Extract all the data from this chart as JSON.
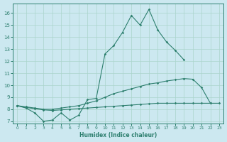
{
  "xlabel": "Humidex (Indice chaleur)",
  "bg_color": "#cce8f0",
  "grid_color": "#aad4cc",
  "line_color": "#2d7f6e",
  "xlim": [
    -0.5,
    23.5
  ],
  "ylim": [
    6.8,
    16.8
  ],
  "yticks": [
    7,
    8,
    9,
    10,
    11,
    12,
    13,
    14,
    15,
    16
  ],
  "xticks": [
    0,
    1,
    2,
    3,
    4,
    5,
    6,
    7,
    8,
    9,
    10,
    11,
    12,
    13,
    14,
    15,
    16,
    17,
    18,
    19,
    20,
    21,
    22,
    23
  ],
  "line1_x": [
    0,
    1,
    2,
    3,
    4,
    5,
    6,
    7,
    8,
    9,
    10,
    11,
    12,
    13,
    14,
    15,
    16,
    17,
    18,
    19
  ],
  "line1_y": [
    8.3,
    8.1,
    7.7,
    7.0,
    7.1,
    7.7,
    7.1,
    7.5,
    8.8,
    8.9,
    12.6,
    13.3,
    14.4,
    15.8,
    15.0,
    16.3,
    14.6,
    13.6,
    12.9,
    12.1
  ],
  "line2_x": [
    0,
    1,
    2,
    3,
    4,
    5,
    6,
    7,
    8,
    9,
    10,
    11,
    12,
    13,
    14,
    15,
    16,
    17,
    18,
    19,
    20,
    21,
    22
  ],
  "line2_y": [
    8.3,
    8.2,
    8.1,
    8.0,
    8.0,
    8.1,
    8.2,
    8.3,
    8.5,
    8.7,
    9.0,
    9.3,
    9.5,
    9.7,
    9.9,
    10.1,
    10.2,
    10.35,
    10.45,
    10.55,
    10.5,
    9.8,
    8.5
  ],
  "line3_x": [
    0,
    1,
    2,
    3,
    4,
    5,
    6,
    7,
    8,
    9,
    10,
    11,
    12,
    13,
    14,
    15,
    16,
    17,
    18,
    19,
    20,
    21,
    22,
    23
  ],
  "line3_y": [
    8.3,
    8.15,
    8.05,
    7.95,
    7.9,
    7.95,
    8.0,
    8.05,
    8.1,
    8.15,
    8.2,
    8.25,
    8.3,
    8.35,
    8.4,
    8.45,
    8.5,
    8.5,
    8.5,
    8.5,
    8.5,
    8.5,
    8.5,
    8.5
  ]
}
